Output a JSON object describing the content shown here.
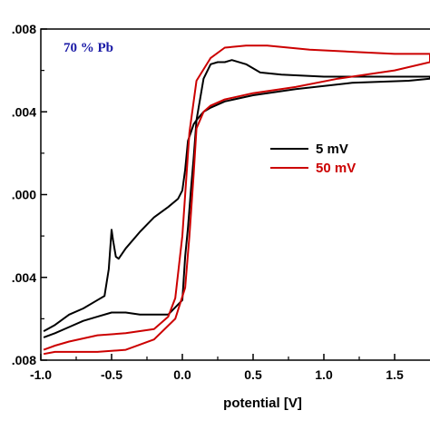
{
  "chart_data": {
    "type": "line",
    "title": "",
    "xlabel": "potential [V]",
    "ylabel": "",
    "xlim": [
      -1.0,
      1.75
    ],
    "ylim": [
      -0.008,
      0.008
    ],
    "grid": false,
    "legend_position": "center-right",
    "annotation": {
      "text": "70 % Pb",
      "color": "#1a1aa6"
    },
    "x_ticks": [
      {
        "value": -1.0,
        "label": "-1.0"
      },
      {
        "value": -0.5,
        "label": "-0.5"
      },
      {
        "value": 0.0,
        "label": "0.0"
      },
      {
        "value": 0.5,
        "label": "0.5"
      },
      {
        "value": 1.0,
        "label": "1.0"
      },
      {
        "value": 1.5,
        "label": "1.5"
      }
    ],
    "y_ticks": [
      {
        "value": 0.008,
        "label": ".008"
      },
      {
        "value": 0.004,
        "label": ".004"
      },
      {
        "value": 0.0,
        "label": ".000"
      },
      {
        "value": -0.004,
        "label": ".004"
      },
      {
        "value": -0.008,
        "label": ".008"
      }
    ],
    "series": [
      {
        "name": "5 mV",
        "color": "#000000",
        "x": [
          -0.98,
          -0.9,
          -0.8,
          -0.7,
          -0.6,
          -0.55,
          -0.52,
          -0.5,
          -0.49,
          -0.47,
          -0.45,
          -0.4,
          -0.3,
          -0.2,
          -0.1,
          -0.03,
          0.0,
          0.02,
          0.04,
          0.06,
          0.08,
          0.1,
          0.15,
          0.2,
          0.3,
          0.5,
          0.8,
          1.2,
          1.6,
          1.75,
          1.75,
          1.4,
          1.0,
          0.7,
          0.55,
          0.45,
          0.35,
          0.3,
          0.25,
          0.2,
          0.15,
          0.1,
          0.08,
          0.06,
          0.04,
          0.02,
          0.0,
          -0.1,
          -0.2,
          -0.3,
          -0.4,
          -0.5,
          -0.6,
          -0.7,
          -0.8,
          -0.9,
          -0.98
        ],
        "y": [
          -0.0066,
          -0.0063,
          -0.0058,
          -0.0055,
          -0.0051,
          -0.0049,
          -0.0036,
          -0.0017,
          -0.0022,
          -0.003,
          -0.0031,
          -0.0026,
          -0.0018,
          -0.0011,
          -0.0006,
          -0.0002,
          0.0002,
          0.0012,
          0.0026,
          0.003,
          0.0034,
          0.0036,
          0.004,
          0.0042,
          0.0045,
          0.0048,
          0.0051,
          0.0054,
          0.0055,
          0.0056,
          0.0057,
          0.0057,
          0.0057,
          0.0058,
          0.0059,
          0.0063,
          0.0065,
          0.0064,
          0.0064,
          0.0063,
          0.0056,
          0.0036,
          0.0018,
          0.0002,
          -0.0016,
          -0.003,
          -0.0051,
          -0.0058,
          -0.0058,
          -0.0058,
          -0.0057,
          -0.0057,
          -0.0059,
          -0.0061,
          -0.0064,
          -0.0067,
          -0.0069
        ]
      },
      {
        "name": "50 mV",
        "color": "#cc0000",
        "x": [
          -0.98,
          -0.9,
          -0.8,
          -0.6,
          -0.4,
          -0.2,
          -0.05,
          0.02,
          0.05,
          0.08,
          0.1,
          0.15,
          0.2,
          0.3,
          0.5,
          0.8,
          1.1,
          1.5,
          1.75,
          1.75,
          1.5,
          1.2,
          0.9,
          0.6,
          0.45,
          0.3,
          0.2,
          0.1,
          0.05,
          0.0,
          -0.05,
          -0.1,
          -0.2,
          -0.4,
          -0.6,
          -0.8,
          -0.9,
          -0.98
        ],
        "y": [
          -0.0077,
          -0.0076,
          -0.0076,
          -0.0076,
          -0.0075,
          -0.007,
          -0.006,
          -0.0045,
          -0.002,
          0.001,
          0.0032,
          0.004,
          0.0043,
          0.0046,
          0.0049,
          0.0052,
          0.0056,
          0.006,
          0.0064,
          0.0068,
          0.0068,
          0.0069,
          0.007,
          0.0072,
          0.0072,
          0.0071,
          0.0066,
          0.0055,
          0.003,
          -0.002,
          -0.005,
          -0.0059,
          -0.0065,
          -0.0067,
          -0.0068,
          -0.0071,
          -0.0073,
          -0.0075
        ]
      }
    ]
  }
}
